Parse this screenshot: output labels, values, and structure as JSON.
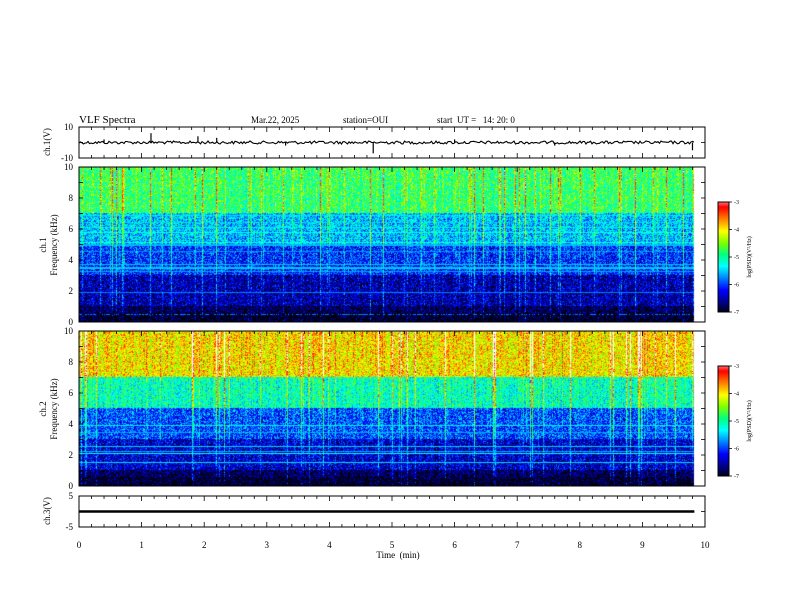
{
  "header": {
    "title": "VLF Spectra",
    "date": "Mar.22, 2025",
    "station": "station=OUI",
    "start": "start  UT =   14: 20: 0"
  },
  "chart_data": [
    {
      "type": "line",
      "panel": "ch1-waveform",
      "ylabel": "ch.1(V)",
      "ylim": [
        -10,
        10
      ],
      "yticks": [
        "10",
        "-10"
      ],
      "xlim": [
        0,
        10
      ],
      "trace_level": 0,
      "trace_end_x": 9.83,
      "color": "#000000"
    },
    {
      "type": "heatmap",
      "panel": "ch1-spectrogram",
      "ylabel_line1": "ch.1",
      "ylabel_line2": "Frequency (kHz)",
      "ylim": [
        0,
        10
      ],
      "yticks": [
        "0",
        "2",
        "4",
        "6",
        "8",
        "10"
      ],
      "xlim": [
        0,
        10
      ],
      "data_end_x": 9.83,
      "colorbar": {
        "label": "log(PSD)(V²/Hz)",
        "range": [
          -7,
          -3
        ],
        "ticks": [
          "-3",
          "-4",
          "-5",
          "-6",
          "-7"
        ]
      },
      "dominant_levels_by_freq": [
        {
          "freq_range": [
            0,
            1
          ],
          "log_psd": -6.9
        },
        {
          "freq_range": [
            1,
            3
          ],
          "log_psd": -6.6
        },
        {
          "freq_range": [
            3,
            5
          ],
          "log_psd": -6.2
        },
        {
          "freq_range": [
            5,
            7
          ],
          "log_psd": -5.7
        },
        {
          "freq_range": [
            7,
            10
          ],
          "log_psd": -5.0
        }
      ]
    },
    {
      "type": "heatmap",
      "panel": "ch2-spectrogram",
      "ylabel_line1": "ch.2",
      "ylabel_line2": "Frequency (kHz)",
      "ylim": [
        0,
        10
      ],
      "yticks": [
        "0",
        "2",
        "4",
        "6",
        "8",
        "10"
      ],
      "xlim": [
        0,
        10
      ],
      "data_end_x": 9.83,
      "colorbar": {
        "label": "log(PSD)(V²/Hz)",
        "range": [
          -7,
          -3
        ],
        "ticks": [
          "-3",
          "-4",
          "-5",
          "-6",
          "-7"
        ]
      },
      "dominant_levels_by_freq": [
        {
          "freq_range": [
            0,
            1
          ],
          "log_psd": -6.9
        },
        {
          "freq_range": [
            1,
            3
          ],
          "log_psd": -6.5
        },
        {
          "freq_range": [
            3,
            5
          ],
          "log_psd": -6.1
        },
        {
          "freq_range": [
            5,
            7
          ],
          "log_psd": -5.3
        },
        {
          "freq_range": [
            7,
            10
          ],
          "log_psd": -4.2
        }
      ]
    },
    {
      "type": "line",
      "panel": "ch3-waveform",
      "ylabel": "ch.3(V)",
      "ylim": [
        -5,
        5
      ],
      "yticks": [
        "5",
        "-5"
      ],
      "xlim": [
        0,
        10
      ],
      "trace_level": 0,
      "trace_end_x": 9.83,
      "color": "#000000"
    }
  ],
  "xaxis": {
    "label": "Time  (min)",
    "ticks": [
      "0",
      "1",
      "2",
      "3",
      "4",
      "5",
      "6",
      "7",
      "8",
      "9",
      "10"
    ]
  },
  "colors": {
    "colormap": [
      "#000000",
      "#00008b",
      "#0000ff",
      "#0080ff",
      "#00ffff",
      "#00ff80",
      "#80ff00",
      "#ffff00",
      "#ff8000",
      "#ff0000",
      "#ffffff"
    ]
  }
}
